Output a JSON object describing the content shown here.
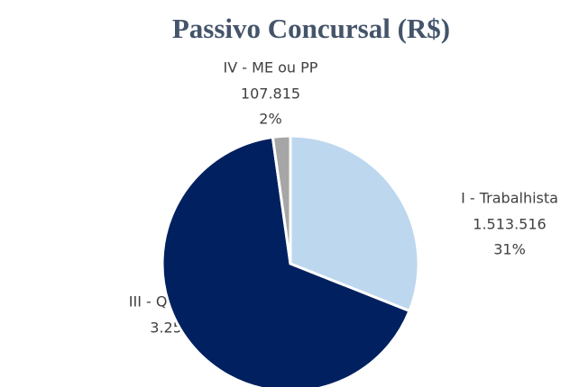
{
  "chart_data": {
    "type": "pie",
    "title": "Passivo Concursal (R$)",
    "categories": [
      "I - Trabalhista",
      "III - Quirografários",
      "IV - ME ou PP"
    ],
    "values": [
      1513516,
      3258118,
      107815
    ],
    "value_labels": [
      "1.513.516",
      "3.258.118…",
      "107.815"
    ],
    "percent_labels": [
      "31%",
      null,
      "2%"
    ],
    "colors": [
      "#bdd7ee",
      "#002060",
      "#a6a6a6"
    ]
  }
}
